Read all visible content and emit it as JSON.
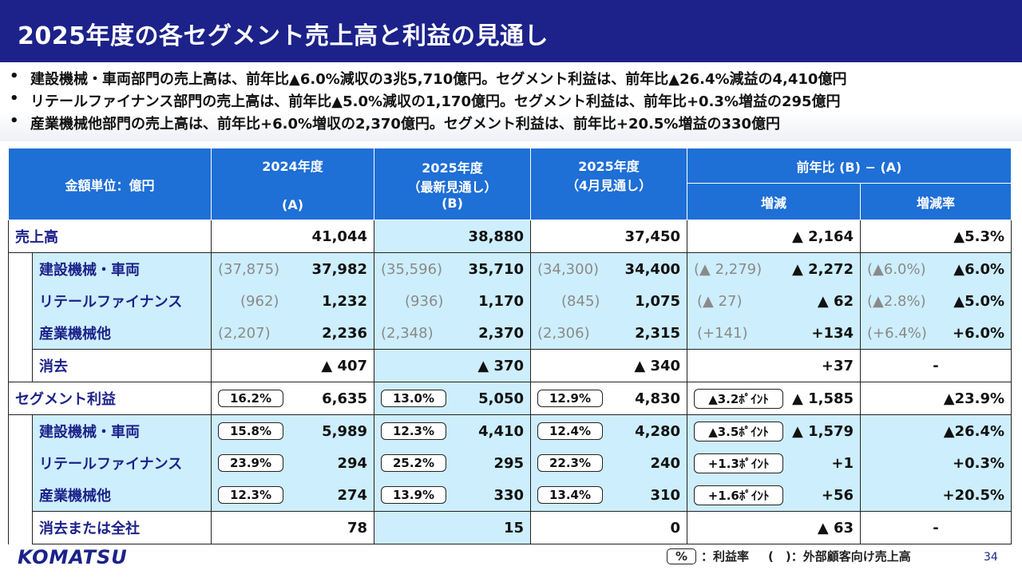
{
  "title": "2025年度の各セグメント売上高と利益の見通し",
  "bullets": [
    "建設機械・車両部門の売上高は、前年比▲6.0%減収の3兆5,710億円。セグメント利益は、前年比▲26.4%減益の4,410億円",
    "リテールファイナンス部門の売上高は、前年比▲5.0%減収の1,170億円。セグメント利益は、前年比+0.3%増益の295億円",
    "産業機械他部門の売上高は、前年比+6.0%増収の2,370億円。セグメント利益は、前年比+20.5%増益の330億円"
  ],
  "table": {
    "header": {
      "unit": "金額単位：億円",
      "col_a_line1": "2024年度",
      "col_a_line2": "(A)",
      "col_b_line1": "2025年度",
      "col_b_line2": "（最新見通し）",
      "col_b_line3": "(B)",
      "col_c_line1": "2025年度",
      "col_c_line2": "（4月見通し）",
      "yoy": "前年比 (B) − (A)",
      "change": "増減",
      "change_rate": "増減率"
    },
    "sales": {
      "label": "売上高",
      "a": "41,044",
      "b": "38,880",
      "c": "37,450",
      "change": "▲ 2,164",
      "rate": "▲5.3%"
    },
    "sales_rows": [
      {
        "label": "建設機械・車両",
        "a_ext": "(37,875)",
        "a": "37,982",
        "b_ext": "(35,596)",
        "b": "35,710",
        "c_ext": "(34,300)",
        "c": "34,400",
        "change_ext": "(▲ 2,279)",
        "change": "▲ 2,272",
        "rate_ext": "(▲6.0%)",
        "rate": "▲6.0%"
      },
      {
        "label": "リテールファイナンス",
        "a_ext": "(962)",
        "a": "1,232",
        "b_ext": "(936)",
        "b": "1,170",
        "c_ext": "(845)",
        "c": "1,075",
        "change_ext": "(▲ 27)",
        "change": "▲ 62",
        "rate_ext": "(▲2.8%)",
        "rate": "▲5.0%"
      },
      {
        "label": "産業機械他",
        "a_ext": "(2,207)",
        "a": "2,236",
        "b_ext": "(2,348)",
        "b": "2,370",
        "c_ext": "(2,306)",
        "c": "2,315",
        "change_ext": "(+141)",
        "change": "+134",
        "rate_ext": "(+6.4%)",
        "rate": "+6.0%"
      }
    ],
    "sales_elim": {
      "label": "消去",
      "a": "▲ 407",
      "b": "▲ 370",
      "c": "▲ 340",
      "change": "+37",
      "rate": "-"
    },
    "profit": {
      "label": "セグメント利益",
      "a_margin": "16.2%",
      "a": "6,635",
      "b_margin": "13.0%",
      "b": "5,050",
      "c_margin": "12.9%",
      "c": "4,830",
      "margin_change": "▲3.2ﾎﾟｲﾝﾄ",
      "change": "▲ 1,585",
      "rate": "▲23.9%"
    },
    "profit_rows": [
      {
        "label": "建設機械・車両",
        "a_margin": "15.8%",
        "a": "5,989",
        "b_margin": "12.3%",
        "b": "4,410",
        "c_margin": "12.4%",
        "c": "4,280",
        "margin_change": "▲3.5ﾎﾟｲﾝﾄ",
        "change": "▲ 1,579",
        "rate": "▲26.4%"
      },
      {
        "label": "リテールファイナンス",
        "a_margin": "23.9%",
        "a": "294",
        "b_margin": "25.2%",
        "b": "295",
        "c_margin": "22.3%",
        "c": "240",
        "margin_change": "+1.3ﾎﾟｲﾝﾄ",
        "change": "+1",
        "rate": "+0.3%"
      },
      {
        "label": "産業機械他",
        "a_margin": "12.3%",
        "a": "274",
        "b_margin": "13.9%",
        "b": "330",
        "c_margin": "13.4%",
        "c": "310",
        "margin_change": "+1.6ﾎﾟｲﾝﾄ",
        "change": "+56",
        "rate": "+20.5%"
      }
    ],
    "profit_elim": {
      "label": "消去または全社",
      "a": "78",
      "b": "15",
      "c": "0",
      "change": "▲ 63",
      "rate": "-"
    }
  },
  "footer": {
    "logo": "KOMATSU",
    "legend_box": "%",
    "legend_margin": "：利益率",
    "legend_paren": "(　)：外部顧客向け売上高",
    "page_number": "34"
  },
  "colors": {
    "title_bg": "#1c2289",
    "header_bg": "#1e6fd6",
    "highlight": "#cdeefc",
    "label": "#1c2289"
  }
}
